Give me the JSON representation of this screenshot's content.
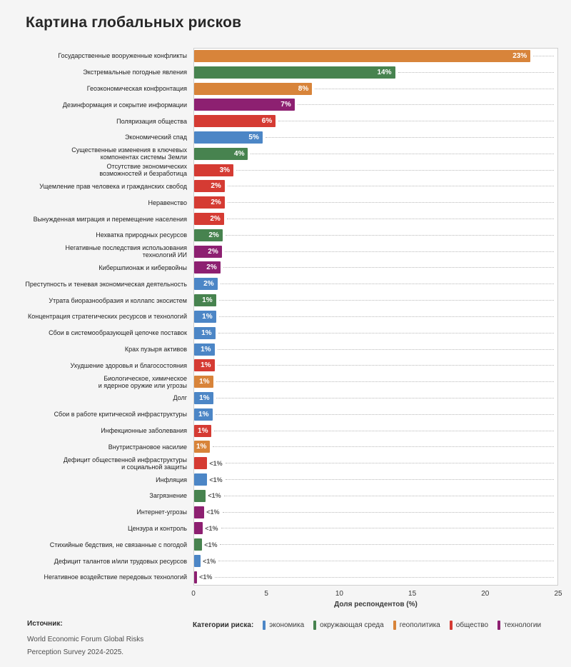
{
  "title": "Картина глобальных рисков",
  "chart_data": {
    "type": "bar",
    "orientation": "horizontal",
    "title": "Картина глобальных рисков",
    "xlabel": "Доля респондентов (%)",
    "ylabel": "",
    "xlim": [
      0,
      25
    ],
    "xticks": [
      0,
      5,
      10,
      15,
      20,
      25
    ],
    "grid": false,
    "legend_position": "bottom",
    "categories": [
      "Государственные вооруженные конфликты",
      "Экстремальные погодные явления",
      "Геоэкономическая конфронтация",
      "Дезинформация и сокрытие информации",
      "Поляризация общества",
      "Экономический спад",
      "Существенные изменения в ключевых\nкомпонентах системы Земли",
      "Отсутствие экономических\nвозможностей и безработица",
      "Ущемление прав человека и гражданских свобод",
      "Неравенство",
      "Вынужденная миграция и перемещение населения",
      "Нехватка природных ресурсов",
      "Негативные последствия использования\nтехнологий ИИ",
      "Кибершпионаж и кибервойны",
      "Преступность и теневая экономическая деятельность",
      "Утрата биоразнообразия и коллапс экосистем",
      "Концентрация стратегических ресурсов и технологий",
      "Сбои в системообразующей цепочке поставок",
      "Крах пузыря активов",
      "Ухудшение здоровья и благосостояния",
      "Биологическое, химическое\nи ядерное оружие или угрозы",
      "Долг",
      "Сбои в работе критической инфраструктуры",
      "Инфекционные заболевания",
      "Внутристрановое насилие",
      "Дефицит общественной инфраструктуры\nи социальной защиты",
      "Инфляция",
      "Загрязнение",
      "Интернет-угрозы",
      "Цензура и контроль",
      "Стихийные бедствия, не связанные с погодой",
      "Дефицит талантов и/или трудовых ресурсов",
      "Негативное воздействие передовых технологий"
    ],
    "values": [
      23.1,
      13.8,
      8.1,
      6.9,
      5.6,
      4.7,
      3.7,
      2.7,
      2.1,
      2.1,
      2.05,
      1.95,
      1.9,
      1.8,
      1.6,
      1.5,
      1.5,
      1.45,
      1.4,
      1.4,
      1.3,
      1.3,
      1.25,
      1.2,
      1.1,
      0.9,
      0.9,
      0.8,
      0.7,
      0.6,
      0.55,
      0.45,
      0.2
    ],
    "display_labels": [
      "23%",
      "14%",
      "8%",
      "7%",
      "6%",
      "5%",
      "4%",
      "3%",
      "2%",
      "2%",
      "2%",
      "2%",
      "2%",
      "2%",
      "2%",
      "1%",
      "1%",
      "1%",
      "1%",
      "1%",
      "1%",
      "1%",
      "1%",
      "1%",
      "1%",
      "<1%",
      "<1%",
      "<1%",
      "<1%",
      "<1%",
      "<1%",
      "<1%",
      "<1%"
    ],
    "risk_categories": [
      "geopolitics",
      "environment",
      "geopolitics",
      "technology",
      "society",
      "economy",
      "environment",
      "society",
      "society",
      "society",
      "society",
      "environment",
      "technology",
      "technology",
      "economy",
      "environment",
      "economy",
      "economy",
      "economy",
      "society",
      "geopolitics",
      "economy",
      "economy",
      "society",
      "geopolitics",
      "society",
      "economy",
      "environment",
      "technology",
      "technology",
      "environment",
      "economy",
      "technology"
    ]
  },
  "colors": {
    "economy": "#4C86C6",
    "environment": "#47834F",
    "geopolitics": "#D8843A",
    "society": "#D53B33",
    "technology": "#8D2071"
  },
  "legend": {
    "title": "Категории риска:",
    "items": [
      {
        "key": "economy",
        "label": "экономика"
      },
      {
        "key": "environment",
        "label": "окружающая среда"
      },
      {
        "key": "geopolitics",
        "label": "геополитика"
      },
      {
        "key": "society",
        "label": "общество"
      },
      {
        "key": "technology",
        "label": "технологии"
      }
    ]
  },
  "footer": {
    "source_label": "Источник:",
    "source_lines": [
      "World Economic Forum Global Risks",
      "Perception Survey 2024-2025."
    ]
  }
}
